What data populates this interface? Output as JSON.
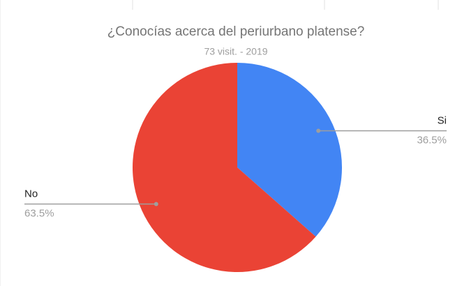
{
  "chart_data": {
    "type": "pie",
    "title": "¿Conocías acerca del periurbano platense?",
    "subtitle": "73 visit. - 2019",
    "categories": [
      "Si",
      "No"
    ],
    "values": [
      36.5,
      63.5
    ],
    "value_labels": [
      "36.5%",
      "63.5%"
    ],
    "colors": [
      "#4285f4",
      "#ea4335"
    ]
  }
}
